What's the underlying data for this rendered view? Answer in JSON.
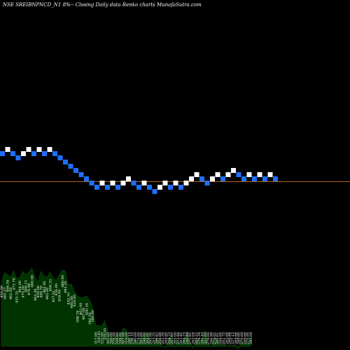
{
  "chart_data": {
    "type": "renko",
    "title": "NSE SREIBNPNCD_N1 8%-- Closing Daily data  Renko  charts MunafaSutra.com",
    "colors": {
      "background": "#000000",
      "up_brick": "#ffffff",
      "down_brick": "#1e6fff",
      "reference_line": "#b5651d",
      "volume_fill": "#003300",
      "volume_line": "#0b4d0b"
    },
    "bricks": [
      {
        "level": 0,
        "dir": "down"
      },
      {
        "level": 1,
        "dir": "up"
      },
      {
        "level": 0,
        "dir": "down"
      },
      {
        "level": -1,
        "dir": "down"
      },
      {
        "level": 0,
        "dir": "up"
      },
      {
        "level": 1,
        "dir": "up"
      },
      {
        "level": 0,
        "dir": "down"
      },
      {
        "level": 1,
        "dir": "up"
      },
      {
        "level": 0,
        "dir": "down"
      },
      {
        "level": 1,
        "dir": "up"
      },
      {
        "level": 0,
        "dir": "down"
      },
      {
        "level": -1,
        "dir": "down"
      },
      {
        "level": -2,
        "dir": "down"
      },
      {
        "level": -3,
        "dir": "down"
      },
      {
        "level": -4,
        "dir": "down"
      },
      {
        "level": -5,
        "dir": "down"
      },
      {
        "level": -6,
        "dir": "down"
      },
      {
        "level": -7,
        "dir": "down"
      },
      {
        "level": -8,
        "dir": "down"
      },
      {
        "level": -7,
        "dir": "up"
      },
      {
        "level": -8,
        "dir": "down"
      },
      {
        "level": -7,
        "dir": "up"
      },
      {
        "level": -8,
        "dir": "down"
      },
      {
        "level": -7,
        "dir": "up"
      },
      {
        "level": -6,
        "dir": "up"
      },
      {
        "level": -7,
        "dir": "down"
      },
      {
        "level": -8,
        "dir": "down"
      },
      {
        "level": -7,
        "dir": "up"
      },
      {
        "level": -8,
        "dir": "down"
      },
      {
        "level": -9,
        "dir": "down"
      },
      {
        "level": -8,
        "dir": "up"
      },
      {
        "level": -7,
        "dir": "up"
      },
      {
        "level": -8,
        "dir": "down"
      },
      {
        "level": -7,
        "dir": "up"
      },
      {
        "level": -8,
        "dir": "down"
      },
      {
        "level": -7,
        "dir": "up"
      },
      {
        "level": -6,
        "dir": "up"
      },
      {
        "level": -5,
        "dir": "up"
      },
      {
        "level": -6,
        "dir": "down"
      },
      {
        "level": -7,
        "dir": "down"
      },
      {
        "level": -6,
        "dir": "up"
      },
      {
        "level": -5,
        "dir": "up"
      },
      {
        "level": -6,
        "dir": "down"
      },
      {
        "level": -5,
        "dir": "up"
      },
      {
        "level": -4,
        "dir": "up"
      },
      {
        "level": -5,
        "dir": "down"
      },
      {
        "level": -6,
        "dir": "down"
      },
      {
        "level": -5,
        "dir": "up"
      },
      {
        "level": -6,
        "dir": "down"
      },
      {
        "level": -5,
        "dir": "up"
      },
      {
        "level": -6,
        "dir": "down"
      },
      {
        "level": -5,
        "dir": "up"
      },
      {
        "level": -6,
        "dir": "down"
      }
    ],
    "volume_labels": [
      "450.00",
      "465.57",
      "466.56",
      "465.00",
      "471.79",
      "455.35",
      "464.00",
      "470.00",
      "466.11",
      "476.96",
      "480.00",
      "461.30",
      "450.06",
      "469.70",
      "463.45",
      "465.00",
      "468.33",
      "457.01",
      "456.00",
      "459.00",
      "480.00",
      "483.20",
      "430.10",
      "440.00",
      "424.60",
      "398.76",
      "401.00",
      "407.00",
      "400.18",
      "393.56",
      "380.00",
      "317.00",
      "320.45",
      "325.00",
      "329.05",
      "305.05",
      "299.00",
      "276.00",
      "298.00",
      "299.00",
      "307.00",
      "310.00",
      "289.10",
      "276.10",
      "280.00",
      "274.00",
      "281.00",
      "298.00",
      "304.00",
      "265.00",
      "263.55",
      "289.62",
      "268.00",
      "262.50",
      "264.00",
      "268.73",
      "297.05",
      "265.00",
      "273.90",
      "261.45",
      "284.75",
      "296.94",
      "271.95",
      "263.00",
      "269.22",
      "279.34",
      "285.44",
      "301.00",
      "270.00",
      "266.99",
      "274.02",
      "285.61",
      "269.00",
      "262.73",
      "263.00",
      "269.88",
      "257.15",
      "264.99",
      "260.00",
      "270.00",
      "269.00",
      "275.00",
      "283.00"
    ]
  }
}
